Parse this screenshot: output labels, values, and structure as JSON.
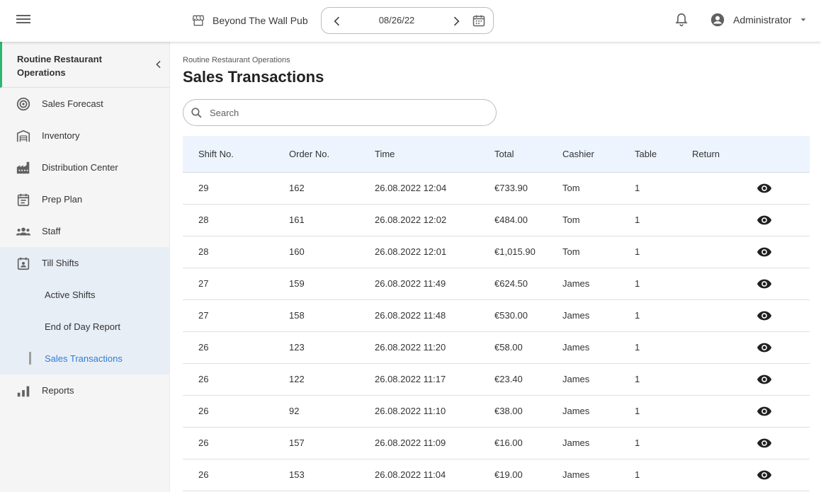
{
  "header": {
    "menu_icon": "hamburger-icon",
    "venue": "Beyond The Wall Pub",
    "date": "08/26/22",
    "user": "Administrator"
  },
  "sidebar": {
    "title": "Routine Restaurant Operations",
    "items": [
      {
        "label": "Sales Forecast",
        "icon": "target-icon"
      },
      {
        "label": "Inventory",
        "icon": "warehouse-icon"
      },
      {
        "label": "Distribution Center",
        "icon": "factory-icon"
      },
      {
        "label": "Prep Plan",
        "icon": "calendar-list-icon"
      },
      {
        "label": "Staff",
        "icon": "people-icon"
      },
      {
        "label": "Till Shifts",
        "icon": "calendar-person-icon"
      },
      {
        "label": "Reports",
        "icon": "bar-chart-icon"
      }
    ],
    "sub_items": [
      {
        "label": "Active Shifts"
      },
      {
        "label": "End of Day Report"
      },
      {
        "label": "Sales Transactions"
      }
    ]
  },
  "main": {
    "breadcrumb": "Routine Restaurant Operations",
    "title": "Sales Transactions",
    "search_placeholder": "Search",
    "columns": [
      "Shift No.",
      "Order No.",
      "Time",
      "Total",
      "Cashier",
      "Table",
      "Return"
    ],
    "rows": [
      {
        "shift": "29",
        "order": "162",
        "time": "26.08.2022 12:04",
        "total": "€733.90",
        "cashier": "Tom",
        "table": "1",
        "return": ""
      },
      {
        "shift": "28",
        "order": "161",
        "time": "26.08.2022 12:02",
        "total": "€484.00",
        "cashier": "Tom",
        "table": "1",
        "return": ""
      },
      {
        "shift": "28",
        "order": "160",
        "time": "26.08.2022 12:01",
        "total": "€1,015.90",
        "cashier": "Tom",
        "table": "1",
        "return": ""
      },
      {
        "shift": "27",
        "order": "159",
        "time": "26.08.2022 11:49",
        "total": "€624.50",
        "cashier": "James",
        "table": "1",
        "return": ""
      },
      {
        "shift": "27",
        "order": "158",
        "time": "26.08.2022 11:48",
        "total": "€530.00",
        "cashier": "James",
        "table": "1",
        "return": ""
      },
      {
        "shift": "26",
        "order": "123",
        "time": "26.08.2022 11:20",
        "total": "€58.00",
        "cashier": "James",
        "table": "1",
        "return": ""
      },
      {
        "shift": "26",
        "order": "122",
        "time": "26.08.2022 11:17",
        "total": "€23.40",
        "cashier": "James",
        "table": "1",
        "return": ""
      },
      {
        "shift": "26",
        "order": "92",
        "time": "26.08.2022 11:10",
        "total": "€38.00",
        "cashier": "James",
        "table": "1",
        "return": ""
      },
      {
        "shift": "26",
        "order": "157",
        "time": "26.08.2022 11:09",
        "total": "€16.00",
        "cashier": "James",
        "table": "1",
        "return": ""
      },
      {
        "shift": "26",
        "order": "153",
        "time": "26.08.2022 11:04",
        "total": "€19.00",
        "cashier": "James",
        "table": "1",
        "return": ""
      }
    ]
  },
  "colors": {
    "accent_green": "#2bb673",
    "link_blue": "#2f7cd3",
    "active_bg": "#e8eef6",
    "header_row_bg": "#edf4fd"
  }
}
